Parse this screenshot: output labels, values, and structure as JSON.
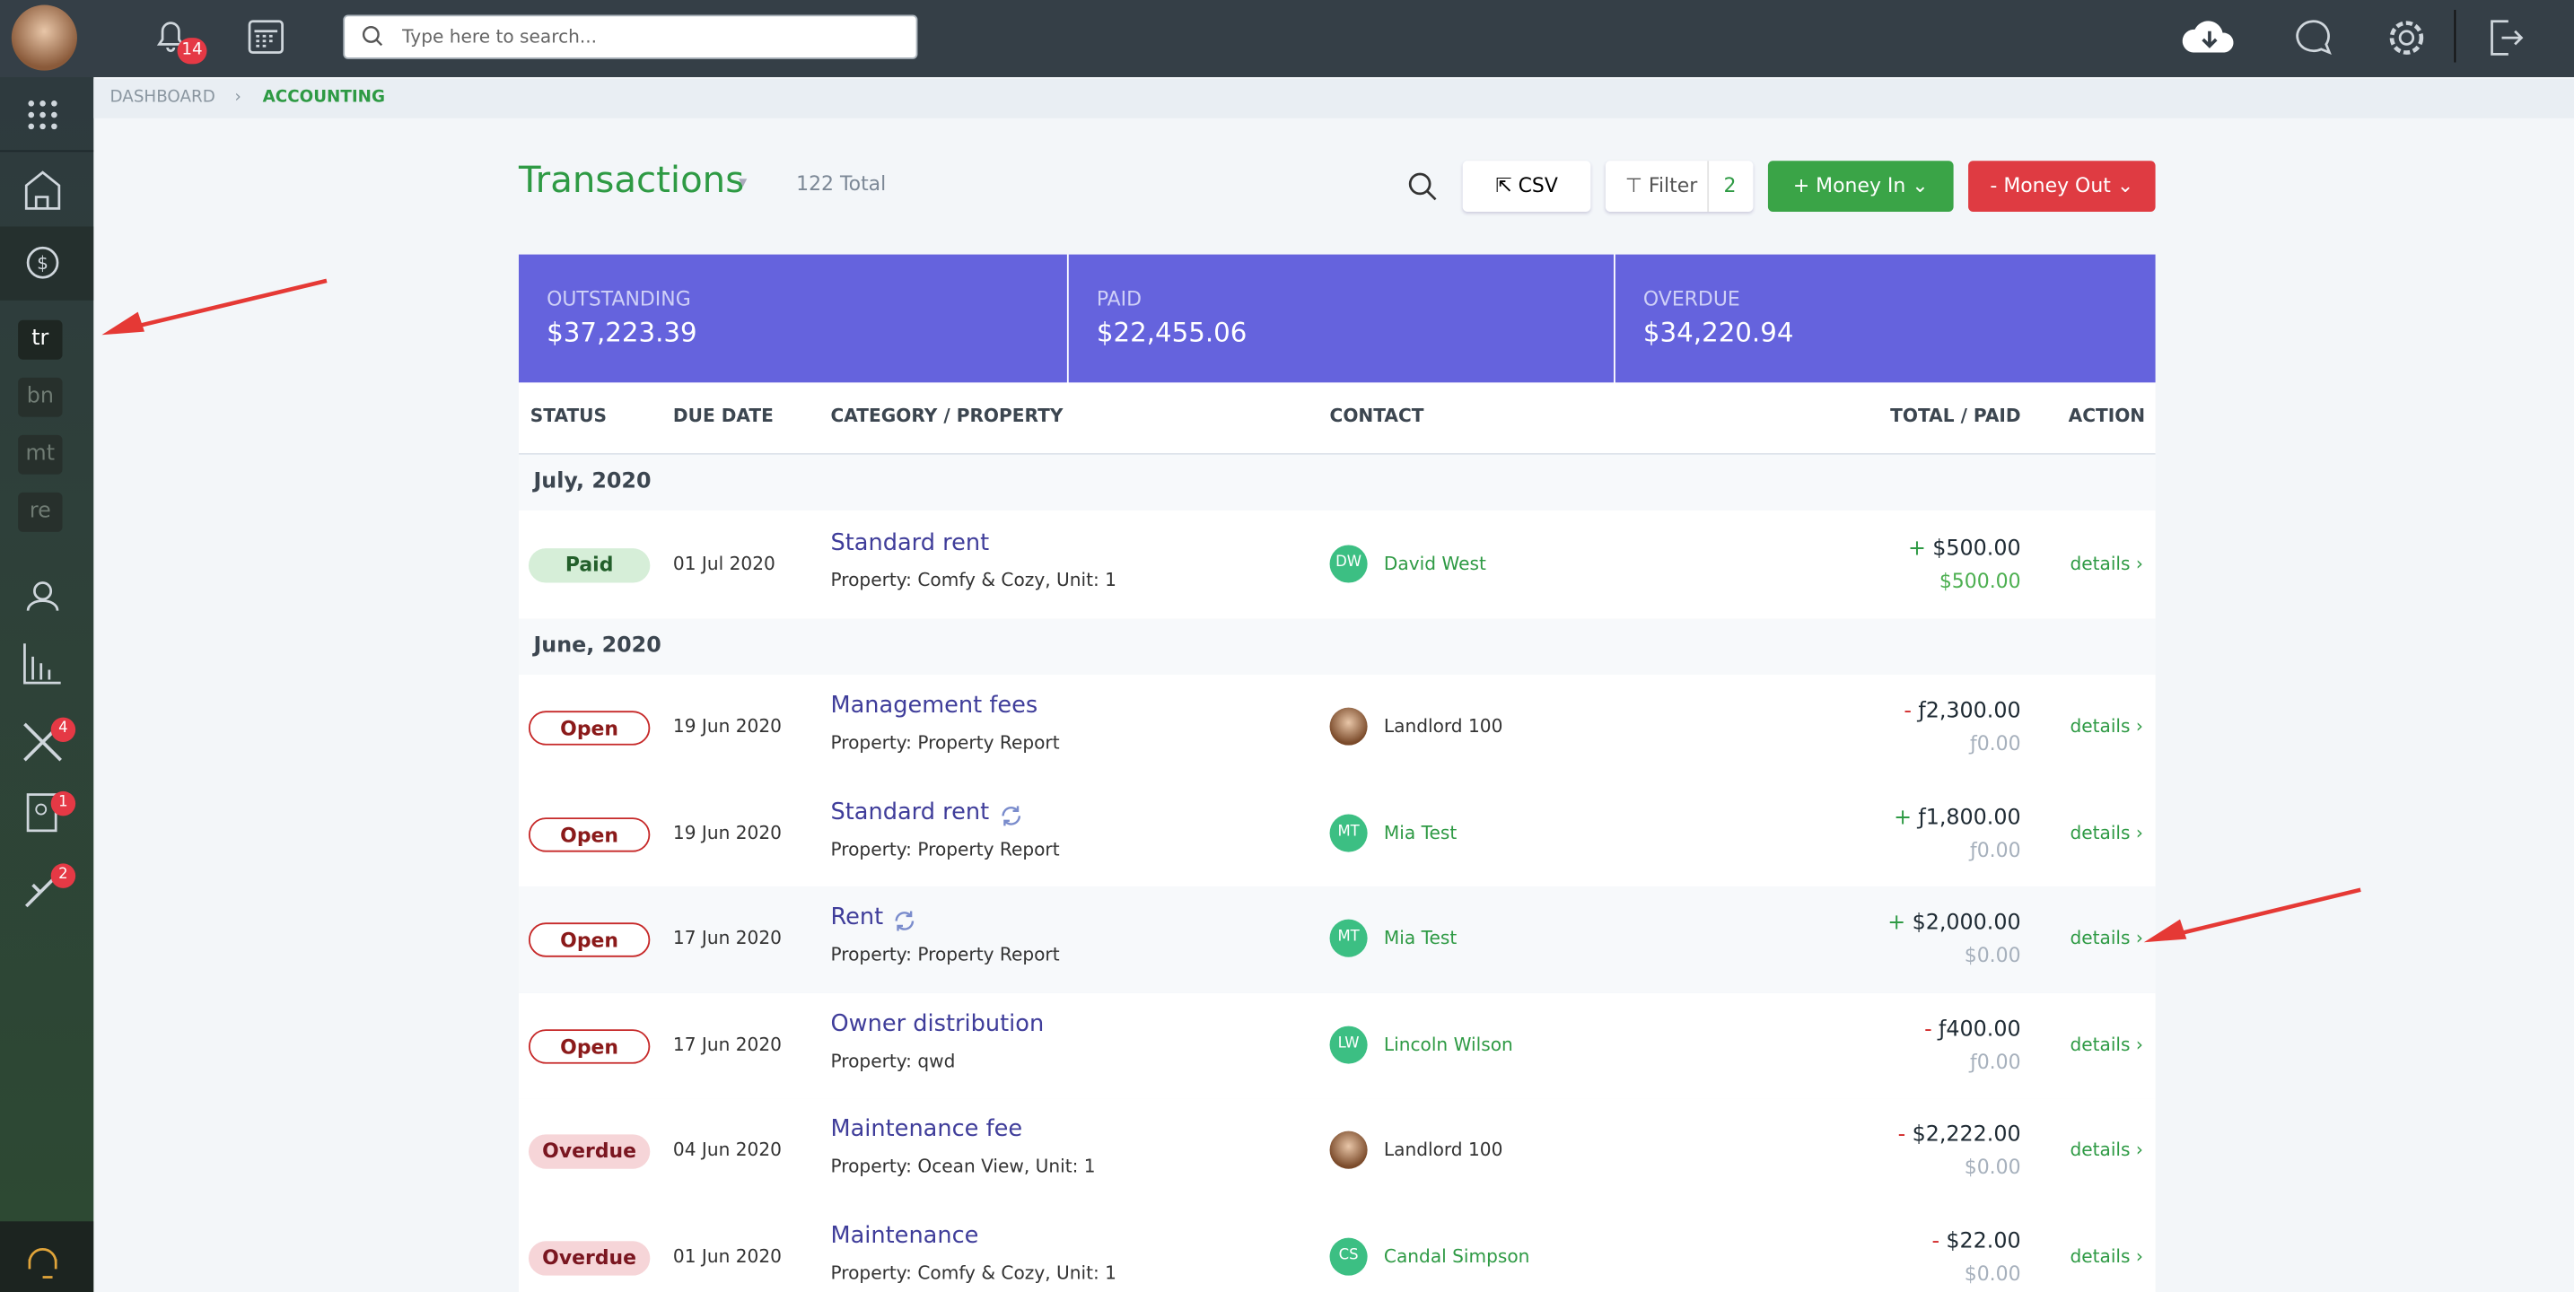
{
  "topbar": {
    "notification_count": "14",
    "search_placeholder": "Type here to search..."
  },
  "sidebar": {
    "nav_labels": [
      "tr",
      "bn",
      "mt",
      "re"
    ],
    "badges": [
      "4",
      "1",
      "2"
    ]
  },
  "breadcrumb": [
    "DASHBOARD",
    "ACCOUNTING"
  ],
  "header": {
    "title": "Transactions",
    "total": "122 Total",
    "csv": "CSV",
    "filter": "Filter",
    "filter_count": "2",
    "money_in": "+ Money In",
    "money_out": "- Money Out"
  },
  "summary": [
    {
      "label": "OUTSTANDING",
      "value": "$37,223.39"
    },
    {
      "label": "PAID",
      "value": "$22,455.06"
    },
    {
      "label": "OVERDUE",
      "value": "$34,220.94"
    }
  ],
  "table": {
    "columns": [
      "STATUS",
      "DUE DATE",
      "CATEGORY / PROPERTY",
      "CONTACT",
      "TOTAL / PAID",
      "ACTION"
    ],
    "groups": [
      {
        "label": "July, 2020",
        "rows": [
          {
            "status": "Paid",
            "date": "01 Jul 2020",
            "category": "Standard rent",
            "property": "Property: Comfy & Cozy, Unit: 1",
            "initials": "DW",
            "contact": "David West",
            "sign": "+",
            "total": "$500.00",
            "paid": "$500.00",
            "action": "details"
          }
        ]
      },
      {
        "label": "June, 2020",
        "rows": [
          {
            "status": "Open",
            "date": "19 Jun 2020",
            "category": "Management fees",
            "property": "Property: Property Report",
            "contact": "Landlord 100",
            "sign": "-",
            "total": "ƒ2,300.00",
            "paid": "ƒ0.00",
            "action": "details"
          },
          {
            "status": "Open",
            "date": "19 Jun 2020",
            "category": "Standard rent",
            "recurring": true,
            "property": "Property: Property Report",
            "initials": "MT",
            "contact": "Mia Test",
            "sign": "+",
            "total": "ƒ1,800.00",
            "paid": "ƒ0.00",
            "action": "details"
          },
          {
            "status": "Open",
            "date": "17 Jun 2020",
            "category": "Rent",
            "recurring": true,
            "property": "Property: Property Report",
            "initials": "MT",
            "contact": "Mia Test",
            "sign": "+",
            "total": "$2,000.00",
            "paid": "$0.00",
            "action": "details"
          },
          {
            "status": "Open",
            "date": "17 Jun 2020",
            "category": "Owner distribution",
            "property": "Property: qwd",
            "initials": "LW",
            "contact": "Lincoln Wilson",
            "sign": "-",
            "total": "ƒ400.00",
            "paid": "ƒ0.00",
            "action": "details"
          },
          {
            "status": "Overdue",
            "date": "04 Jun 2020",
            "category": "Maintenance fee",
            "property": "Property: Ocean View, Unit: 1",
            "contact": "Landlord 100",
            "sign": "-",
            "total": "$2,222.00",
            "paid": "$0.00",
            "action": "details"
          },
          {
            "status": "Overdue",
            "date": "01 Jun 2020",
            "category": "Maintenance",
            "property": "Property: Comfy & Cozy, Unit: 1",
            "initials": "CS",
            "contact": "Candal Simpson",
            "sign": "-",
            "total": "$22.00",
            "paid": "$0.00",
            "action": "details"
          }
        ]
      }
    ]
  }
}
